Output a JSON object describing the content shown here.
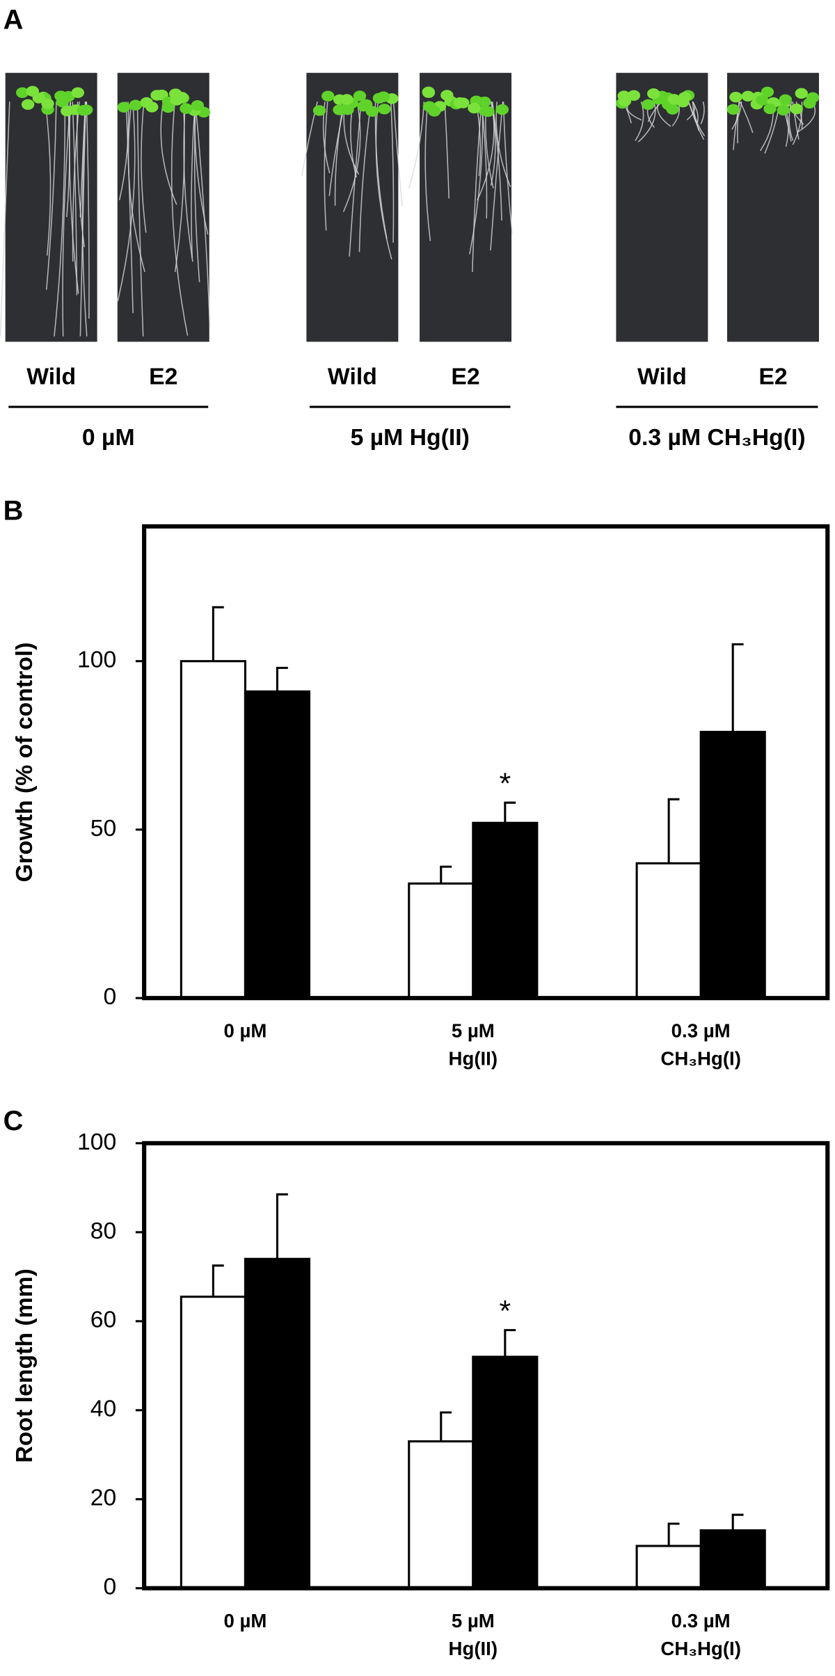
{
  "panel_a": {
    "label": "A",
    "groups": [
      {
        "lanes": [
          "Wild",
          "E2"
        ],
        "label": "0 µM"
      },
      {
        "lanes": [
          "Wild",
          "E2"
        ],
        "label": "5 µM Hg(II)"
      },
      {
        "lanes": [
          "Wild",
          "E2"
        ],
        "label": "0.3 µM CH₃Hg(I)"
      }
    ]
  },
  "chart_data": [
    {
      "type": "bar",
      "panel_label": "B",
      "y_label": "Growth (% of control)",
      "categories": [
        [
          "0 µM"
        ],
        [
          "5 µM",
          "Hg(II)"
        ],
        [
          "0.3 µM",
          "CH₃Hg(I)"
        ]
      ],
      "series": [
        {
          "color": "#ffffff",
          "values": [
            100,
            34,
            40
          ],
          "errors": [
            16,
            5,
            19
          ]
        },
        {
          "color": "#000000",
          "values": [
            91,
            52,
            79
          ],
          "errors": [
            7,
            6,
            26
          ]
        }
      ],
      "annotations": [
        {
          "text": "*",
          "series": 1,
          "category": 1
        }
      ],
      "ylim": [
        0,
        140
      ],
      "yticks": [
        0,
        50,
        100
      ]
    },
    {
      "type": "bar",
      "panel_label": "C",
      "y_label": "Root length (mm)",
      "categories": [
        [
          "0 µM"
        ],
        [
          "5 µM",
          "Hg(II)"
        ],
        [
          "0.3 µM",
          "CH₃Hg(I)"
        ]
      ],
      "series": [
        {
          "color": "#ffffff",
          "values": [
            65.5,
            33,
            9.5
          ],
          "errors": [
            7,
            6.5,
            5
          ]
        },
        {
          "color": "#000000",
          "values": [
            74,
            52,
            13
          ],
          "errors": [
            14.5,
            6,
            3.5
          ]
        }
      ],
      "annotations": [
        {
          "text": "*",
          "series": 1,
          "category": 1
        }
      ],
      "ylim": [
        0,
        100
      ],
      "yticks": [
        0,
        20,
        40,
        60,
        80,
        100
      ]
    }
  ]
}
